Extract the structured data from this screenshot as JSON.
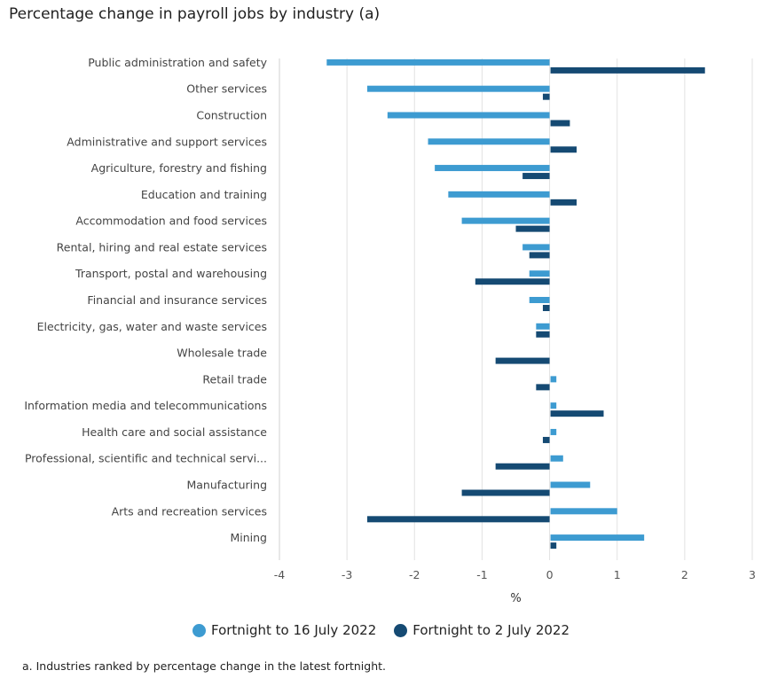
{
  "chart_data": {
    "type": "bar",
    "orientation": "horizontal",
    "title": "Percentage change in payroll jobs by industry (a)",
    "xlabel": "%",
    "ylabel": "",
    "xlim": [
      -4,
      3
    ],
    "xticks": [
      -4,
      -3,
      -2,
      -1,
      0,
      1,
      2,
      3
    ],
    "grid": true,
    "legend_position": "bottom",
    "categories": [
      "Public administration and safety",
      "Other services",
      "Construction",
      "Administrative and support services",
      "Agriculture, forestry and fishing",
      "Education and training",
      "Accommodation and food services",
      "Rental, hiring and real estate services",
      "Transport, postal and warehousing",
      "Financial and insurance services",
      "Electricity, gas, water and waste services",
      "Wholesale trade",
      "Retail trade",
      "Information media and telecommunications",
      "Health care and social assistance",
      "Professional, scientific and technical servi...",
      "Manufacturing",
      "Arts and recreation services",
      "Mining"
    ],
    "series": [
      {
        "name": "Fortnight to 16 July 2022",
        "color": "#3d9bd1",
        "values": [
          -3.3,
          -2.7,
          -2.4,
          -1.8,
          -1.7,
          -1.5,
          -1.3,
          -0.4,
          -0.3,
          -0.3,
          -0.2,
          0.0,
          0.1,
          0.1,
          0.1,
          0.2,
          0.6,
          1.0,
          1.4
        ]
      },
      {
        "name": "Fortnight to 2 July 2022",
        "color": "#154a73",
        "values": [
          2.3,
          -0.1,
          0.3,
          0.4,
          -0.4,
          0.4,
          -0.5,
          -0.3,
          -1.1,
          -0.1,
          -0.2,
          -0.8,
          -0.2,
          0.8,
          -0.1,
          -0.8,
          -1.3,
          -2.7,
          0.1
        ]
      }
    ]
  },
  "footnote": "a. Industries ranked by percentage change in the latest fortnight."
}
